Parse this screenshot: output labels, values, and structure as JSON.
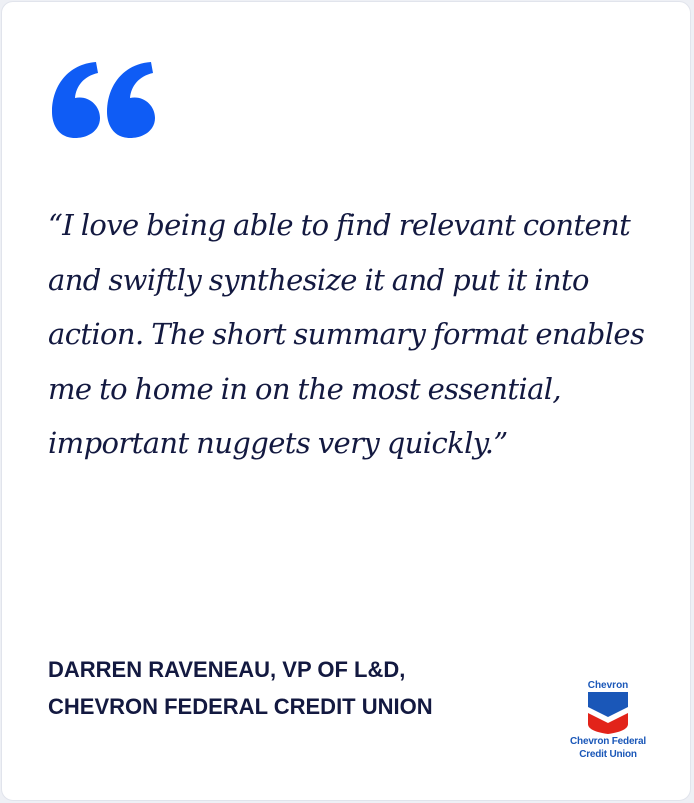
{
  "quote": {
    "text": "“I love being able to find relevant content and swiftly synthesize it and put it into action. The short summary format enables me to home in on the most essential, important nuggets very quickly.”"
  },
  "attribution": {
    "text": "DARREN RAVENEAU, VP OF L&D, CHEVRON FEDERAL CREDIT UNION"
  },
  "logo": {
    "brand_text": "Chevron",
    "name_line1": "Chevron Federal",
    "name_line2": "Credit Union"
  },
  "colors": {
    "accent_blue": "#0f5cf5",
    "text_navy": "#131940",
    "logo_blue": "#1a57b8",
    "logo_red": "#e2231a"
  },
  "icons": {
    "quote_mark": "open-quote-icon",
    "logo_shield": "chevron-shield-icon"
  }
}
